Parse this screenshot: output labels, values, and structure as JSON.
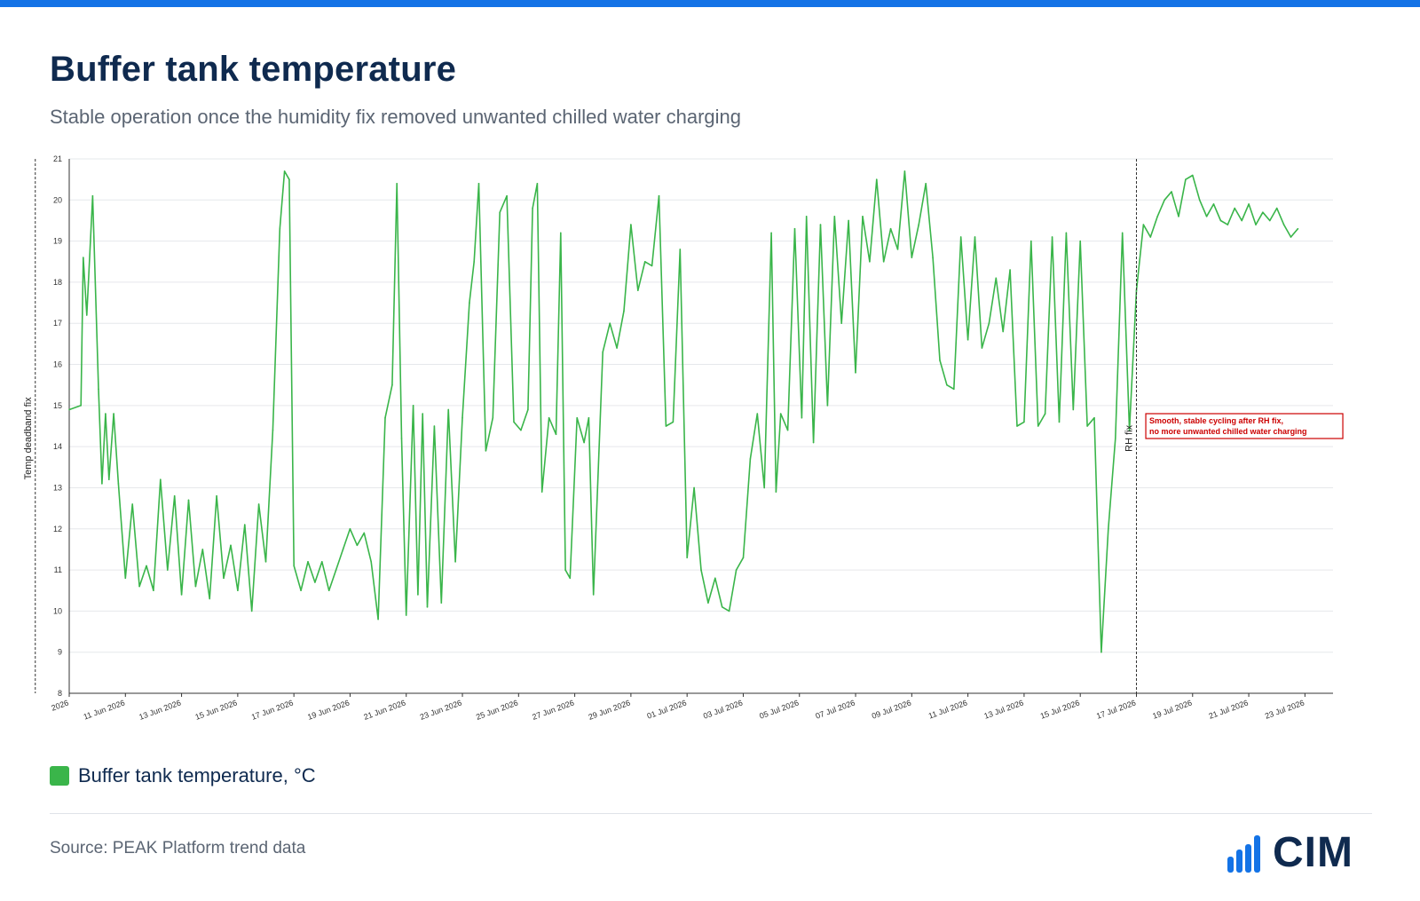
{
  "page": {
    "title": "Buffer tank temperature",
    "subtitle": "Stable operation once the humidity fix removed unwanted chilled water charging",
    "legend_label": "Buffer tank temperature, °C",
    "source": "Source: PEAK Platform trend data",
    "logo_text": "CIM"
  },
  "colors": {
    "accent_bar": "#1473e6",
    "series": "#3ab54a",
    "title": "#0f2a4f",
    "annotation": "#cc0000"
  },
  "chart_data": {
    "type": "line",
    "title": "Buffer tank temperature",
    "subtitle": "Stable operation once the humidity fix removed unwanted chilled water charging",
    "xlabel": "",
    "ylabel": "",
    "xlim": [
      "2026-06-09",
      "2026-07-24"
    ],
    "ylim": [
      8,
      21
    ],
    "y_ticks": [
      8,
      9,
      10,
      11,
      12,
      13,
      14,
      15,
      16,
      17,
      18,
      19,
      20,
      21
    ],
    "x_tick_labels": [
      "2026",
      "11 Jun 2026",
      "13 Jun 2026",
      "15 Jun 2026",
      "17 Jun 2026",
      "19 Jun 2026",
      "21 Jun 2026",
      "23 Jun 2026",
      "25 Jun 2026",
      "27 Jun 2026",
      "29 Jun 2026",
      "01 Jul 2026",
      "03 Jul 2026",
      "05 Jul 2026",
      "07 Jul 2026",
      "09 Jul 2026",
      "11 Jul 2026",
      "13 Jul 2026",
      "15 Jul 2026",
      "17 Jul 2026",
      "19 Jul 2026",
      "21 Jul 2026",
      "23 Jul 2026"
    ],
    "grid": true,
    "legend_position": "bottom-left",
    "series": [
      {
        "name": "Buffer tank temperature, °C",
        "color": "#3ab54a",
        "points": [
          [
            "2026-06-09 00:00",
            14.9
          ],
          [
            "2026-06-09 10:00",
            15.0
          ],
          [
            "2026-06-09 12:00",
            18.6
          ],
          [
            "2026-06-09 15:00",
            17.2
          ],
          [
            "2026-06-09 20:00",
            20.1
          ],
          [
            "2026-06-10 01:00",
            15.4
          ],
          [
            "2026-06-10 04:00",
            13.1
          ],
          [
            "2026-06-10 07:00",
            14.8
          ],
          [
            "2026-06-10 10:00",
            13.2
          ],
          [
            "2026-06-10 14:00",
            14.8
          ],
          [
            "2026-06-10 18:00",
            13.1
          ],
          [
            "2026-06-11 00:00",
            10.8
          ],
          [
            "2026-06-11 06:00",
            12.6
          ],
          [
            "2026-06-11 12:00",
            10.6
          ],
          [
            "2026-06-11 18:00",
            11.1
          ],
          [
            "2026-06-12 00:00",
            10.5
          ],
          [
            "2026-06-12 06:00",
            13.2
          ],
          [
            "2026-06-12 12:00",
            11.0
          ],
          [
            "2026-06-12 18:00",
            12.8
          ],
          [
            "2026-06-13 00:00",
            10.4
          ],
          [
            "2026-06-13 06:00",
            12.7
          ],
          [
            "2026-06-13 12:00",
            10.6
          ],
          [
            "2026-06-13 18:00",
            11.5
          ],
          [
            "2026-06-14 00:00",
            10.3
          ],
          [
            "2026-06-14 06:00",
            12.8
          ],
          [
            "2026-06-14 12:00",
            10.8
          ],
          [
            "2026-06-14 18:00",
            11.6
          ],
          [
            "2026-06-15 00:00",
            10.5
          ],
          [
            "2026-06-15 06:00",
            12.1
          ],
          [
            "2026-06-15 12:00",
            10.0
          ],
          [
            "2026-06-15 18:00",
            12.6
          ],
          [
            "2026-06-16 00:00",
            11.2
          ],
          [
            "2026-06-16 06:00",
            14.4
          ],
          [
            "2026-06-16 12:00",
            19.3
          ],
          [
            "2026-06-16 16:00",
            20.7
          ],
          [
            "2026-06-16 20:00",
            20.5
          ],
          [
            "2026-06-17 00:00",
            11.1
          ],
          [
            "2026-06-17 06:00",
            10.5
          ],
          [
            "2026-06-17 12:00",
            11.2
          ],
          [
            "2026-06-17 18:00",
            10.7
          ],
          [
            "2026-06-18 00:00",
            11.2
          ],
          [
            "2026-06-18 06:00",
            10.5
          ],
          [
            "2026-06-18 12:00",
            11.0
          ],
          [
            "2026-06-18 18:00",
            11.5
          ],
          [
            "2026-06-19 00:00",
            12.0
          ],
          [
            "2026-06-19 06:00",
            11.6
          ],
          [
            "2026-06-19 12:00",
            11.9
          ],
          [
            "2026-06-19 18:00",
            11.2
          ],
          [
            "2026-06-20 00:00",
            9.8
          ],
          [
            "2026-06-20 06:00",
            14.7
          ],
          [
            "2026-06-20 12:00",
            15.5
          ],
          [
            "2026-06-20 16:00",
            20.4
          ],
          [
            "2026-06-20 20:00",
            14.2
          ],
          [
            "2026-06-21 00:00",
            9.9
          ],
          [
            "2026-06-21 06:00",
            15.0
          ],
          [
            "2026-06-21 10:00",
            10.4
          ],
          [
            "2026-06-21 14:00",
            14.8
          ],
          [
            "2026-06-21 18:00",
            10.1
          ],
          [
            "2026-06-22 00:00",
            14.5
          ],
          [
            "2026-06-22 06:00",
            10.2
          ],
          [
            "2026-06-22 12:00",
            14.9
          ],
          [
            "2026-06-22 18:00",
            11.2
          ],
          [
            "2026-06-23 00:00",
            14.7
          ],
          [
            "2026-06-23 06:00",
            17.5
          ],
          [
            "2026-06-23 10:00",
            18.5
          ],
          [
            "2026-06-23 14:00",
            20.4
          ],
          [
            "2026-06-23 20:00",
            13.9
          ],
          [
            "2026-06-24 02:00",
            14.7
          ],
          [
            "2026-06-24 08:00",
            19.7
          ],
          [
            "2026-06-24 14:00",
            20.1
          ],
          [
            "2026-06-24 20:00",
            14.6
          ],
          [
            "2026-06-25 02:00",
            14.4
          ],
          [
            "2026-06-25 08:00",
            14.9
          ],
          [
            "2026-06-25 12:00",
            19.8
          ],
          [
            "2026-06-25 16:00",
            20.4
          ],
          [
            "2026-06-25 20:00",
            12.9
          ],
          [
            "2026-06-26 02:00",
            14.7
          ],
          [
            "2026-06-26 08:00",
            14.3
          ],
          [
            "2026-06-26 12:00",
            19.2
          ],
          [
            "2026-06-26 16:00",
            11.0
          ],
          [
            "2026-06-26 20:00",
            10.8
          ],
          [
            "2026-06-27 02:00",
            14.7
          ],
          [
            "2026-06-27 08:00",
            14.1
          ],
          [
            "2026-06-27 12:00",
            14.7
          ],
          [
            "2026-06-27 16:00",
            10.4
          ],
          [
            "2026-06-28 00:00",
            16.3
          ],
          [
            "2026-06-28 06:00",
            17.0
          ],
          [
            "2026-06-28 12:00",
            16.4
          ],
          [
            "2026-06-28 18:00",
            17.3
          ],
          [
            "2026-06-29 00:00",
            19.4
          ],
          [
            "2026-06-29 06:00",
            17.8
          ],
          [
            "2026-06-29 12:00",
            18.5
          ],
          [
            "2026-06-29 18:00",
            18.4
          ],
          [
            "2026-06-30 00:00",
            20.1
          ],
          [
            "2026-06-30 06:00",
            14.5
          ],
          [
            "2026-06-30 12:00",
            14.6
          ],
          [
            "2026-06-30 18:00",
            18.8
          ],
          [
            "2026-07-01 00:00",
            11.3
          ],
          [
            "2026-07-01 06:00",
            13.0
          ],
          [
            "2026-07-01 12:00",
            11.0
          ],
          [
            "2026-07-01 18:00",
            10.2
          ],
          [
            "2026-07-02 00:00",
            10.8
          ],
          [
            "2026-07-02 06:00",
            10.1
          ],
          [
            "2026-07-02 12:00",
            10.0
          ],
          [
            "2026-07-02 18:00",
            11.0
          ],
          [
            "2026-07-03 00:00",
            11.3
          ],
          [
            "2026-07-03 06:00",
            13.7
          ],
          [
            "2026-07-03 12:00",
            14.8
          ],
          [
            "2026-07-03 18:00",
            13.0
          ],
          [
            "2026-07-04 00:00",
            19.2
          ],
          [
            "2026-07-04 04:00",
            12.9
          ],
          [
            "2026-07-04 08:00",
            14.8
          ],
          [
            "2026-07-04 14:00",
            14.4
          ],
          [
            "2026-07-04 20:00",
            19.3
          ],
          [
            "2026-07-05 02:00",
            14.7
          ],
          [
            "2026-07-05 06:00",
            19.6
          ],
          [
            "2026-07-05 12:00",
            14.1
          ],
          [
            "2026-07-05 18:00",
            19.4
          ],
          [
            "2026-07-06 00:00",
            15.0
          ],
          [
            "2026-07-06 06:00",
            19.6
          ],
          [
            "2026-07-06 12:00",
            17.0
          ],
          [
            "2026-07-06 18:00",
            19.5
          ],
          [
            "2026-07-07 00:00",
            15.8
          ],
          [
            "2026-07-07 06:00",
            19.6
          ],
          [
            "2026-07-07 12:00",
            18.5
          ],
          [
            "2026-07-07 18:00",
            20.5
          ],
          [
            "2026-07-08 00:00",
            18.5
          ],
          [
            "2026-07-08 06:00",
            19.3
          ],
          [
            "2026-07-08 12:00",
            18.8
          ],
          [
            "2026-07-08 18:00",
            20.7
          ],
          [
            "2026-07-09 00:00",
            18.6
          ],
          [
            "2026-07-09 06:00",
            19.4
          ],
          [
            "2026-07-09 12:00",
            20.4
          ],
          [
            "2026-07-09 18:00",
            18.6
          ],
          [
            "2026-07-10 00:00",
            16.1
          ],
          [
            "2026-07-10 06:00",
            15.5
          ],
          [
            "2026-07-10 12:00",
            15.4
          ],
          [
            "2026-07-10 18:00",
            19.1
          ],
          [
            "2026-07-11 00:00",
            16.6
          ],
          [
            "2026-07-11 06:00",
            19.1
          ],
          [
            "2026-07-11 12:00",
            16.4
          ],
          [
            "2026-07-11 18:00",
            17.0
          ],
          [
            "2026-07-12 00:00",
            18.1
          ],
          [
            "2026-07-12 06:00",
            16.8
          ],
          [
            "2026-07-12 12:00",
            18.3
          ],
          [
            "2026-07-12 18:00",
            14.5
          ],
          [
            "2026-07-13 00:00",
            14.6
          ],
          [
            "2026-07-13 06:00",
            19.0
          ],
          [
            "2026-07-13 12:00",
            14.5
          ],
          [
            "2026-07-13 18:00",
            14.8
          ],
          [
            "2026-07-14 00:00",
            19.1
          ],
          [
            "2026-07-14 06:00",
            14.6
          ],
          [
            "2026-07-14 12:00",
            19.2
          ],
          [
            "2026-07-14 18:00",
            14.9
          ],
          [
            "2026-07-15 00:00",
            19.0
          ],
          [
            "2026-07-15 06:00",
            14.5
          ],
          [
            "2026-07-15 12:00",
            14.7
          ],
          [
            "2026-07-15 18:00",
            9.0
          ],
          [
            "2026-07-16 00:00",
            12.0
          ],
          [
            "2026-07-16 06:00",
            14.2
          ],
          [
            "2026-07-16 12:00",
            19.2
          ],
          [
            "2026-07-16 18:00",
            14.4
          ],
          [
            "2026-07-17 00:00",
            17.8
          ],
          [
            "2026-07-17 06:00",
            19.4
          ],
          [
            "2026-07-17 12:00",
            19.1
          ],
          [
            "2026-07-17 18:00",
            19.6
          ],
          [
            "2026-07-18 00:00",
            20.0
          ],
          [
            "2026-07-18 06:00",
            20.2
          ],
          [
            "2026-07-18 12:00",
            19.6
          ],
          [
            "2026-07-18 18:00",
            20.5
          ],
          [
            "2026-07-19 00:00",
            20.6
          ],
          [
            "2026-07-19 06:00",
            20.0
          ],
          [
            "2026-07-19 12:00",
            19.6
          ],
          [
            "2026-07-19 18:00",
            19.9
          ],
          [
            "2026-07-20 00:00",
            19.5
          ],
          [
            "2026-07-20 06:00",
            19.4
          ],
          [
            "2026-07-20 12:00",
            19.8
          ],
          [
            "2026-07-20 18:00",
            19.5
          ],
          [
            "2026-07-21 00:00",
            19.9
          ],
          [
            "2026-07-21 06:00",
            19.4
          ],
          [
            "2026-07-21 12:00",
            19.7
          ],
          [
            "2026-07-21 18:00",
            19.5
          ],
          [
            "2026-07-22 00:00",
            19.8
          ],
          [
            "2026-07-22 06:00",
            19.4
          ],
          [
            "2026-07-22 12:00",
            19.1
          ],
          [
            "2026-07-22 18:00",
            19.3
          ]
        ]
      }
    ],
    "markers": [
      {
        "date": "2026-06-07 19:00",
        "label": "Temp deadband fix"
      },
      {
        "date": "2026-07-17 00:00",
        "label": "RH fix"
      }
    ],
    "annotations": [
      {
        "lines": [
          "Smooth, stable cycling after RH fix,",
          "no more unwanted chilled water charging"
        ],
        "date": "2026-07-17 08:00",
        "y": 14.5
      }
    ]
  }
}
